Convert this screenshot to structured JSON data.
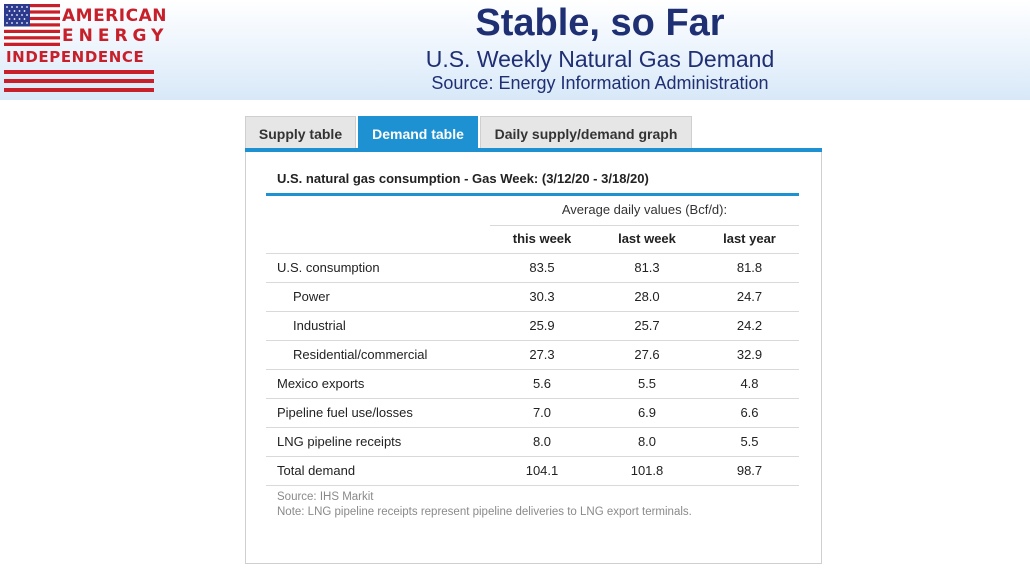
{
  "header": {
    "logo": {
      "line1": "AMERICAN",
      "line2": "ENERGY",
      "line3": "INDEPENDENCE",
      "colors": {
        "red": "#c8202a",
        "blue": "#2b3a8c"
      }
    },
    "title": "Stable, so Far",
    "subtitle": "U.S. Weekly Natural Gas Demand",
    "source": "Source: Energy Information Administration",
    "title_color": "#1f2f73"
  },
  "tabs": [
    {
      "label": "Supply table",
      "active": false
    },
    {
      "label": "Demand table",
      "active": true
    },
    {
      "label": "Daily supply/demand graph",
      "active": false
    }
  ],
  "accent_color": "#1d91d2",
  "table": {
    "heading": "U.S. natural gas consumption - Gas Week: (3/12/20 - 3/18/20)",
    "units_caption": "Average daily values (Bcf/d):",
    "columns": [
      "this week",
      "last week",
      "last year"
    ],
    "rows": [
      {
        "label": "U.S. consumption",
        "indent": false,
        "values": [
          "83.5",
          "81.3",
          "81.8"
        ]
      },
      {
        "label": "Power",
        "indent": true,
        "values": [
          "30.3",
          "28.0",
          "24.7"
        ]
      },
      {
        "label": "Industrial",
        "indent": true,
        "values": [
          "25.9",
          "25.7",
          "24.2"
        ]
      },
      {
        "label": "Residential/commercial",
        "indent": true,
        "values": [
          "27.3",
          "27.6",
          "32.9"
        ]
      },
      {
        "label": "Mexico exports",
        "indent": false,
        "values": [
          "5.6",
          "5.5",
          "4.8"
        ]
      },
      {
        "label": "Pipeline fuel use/losses",
        "indent": false,
        "values": [
          "7.0",
          "6.9",
          "6.6"
        ]
      },
      {
        "label": "LNG pipeline receipts",
        "indent": false,
        "values": [
          "8.0",
          "8.0",
          "5.5"
        ]
      },
      {
        "label": "Total demand",
        "indent": false,
        "values": [
          "104.1",
          "101.8",
          "98.7"
        ]
      }
    ],
    "source_note": "Source: IHS Markit",
    "footnote": "Note: LNG pipeline receipts represent pipeline deliveries to LNG export terminals."
  }
}
